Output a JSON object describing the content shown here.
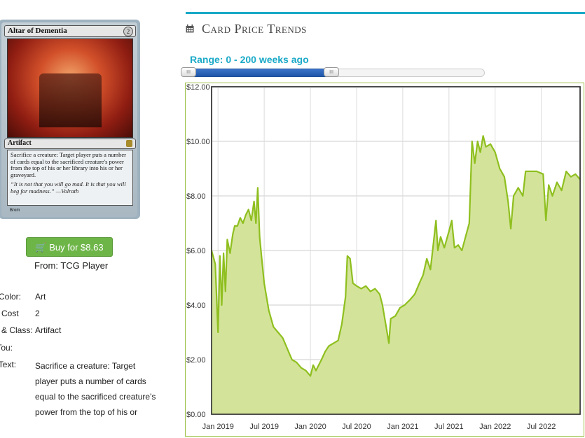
{
  "card": {
    "name": "Altar of Dementia",
    "cost": "2",
    "type": "Artifact",
    "rules_text": "Sacrifice a creature: Target player puts a number of cards equal to the sacrificed creature's power from the top of his or her library into his or her graveyard.",
    "flavor_text": "“It is not that you will go mad. It is that you will beg for madness.” —Volrath",
    "artist": "Brom"
  },
  "buy": {
    "label": "Buy for $8.63",
    "icon": "cart-icon",
    "from": "From: TCG Player"
  },
  "details": {
    "color_label": "l Color:",
    "color_value": "Art",
    "cost_label": "a Cost",
    "cost_value": "2",
    "type_label": "e & Class:",
    "type_value": "Artifact",
    "pt_label": "/Tou:",
    "pt_value": "",
    "text_label": "l Text:",
    "text_value": "Sacrifice a creature: Target player puts a number of cards equal to the sacrificed creature's power from the top of his or"
  },
  "panel": {
    "title": "Card Price Trends",
    "title_icon": "calendar-icon",
    "range_label": "Range: 0 - 200 weeks ago",
    "slider": {
      "min": 0,
      "max": 200,
      "low": 0,
      "high": 200,
      "full_scale_fraction": 0.48
    },
    "accent_color": "#1aa9c8"
  },
  "chart_data": {
    "type": "area",
    "ylim": [
      0,
      12
    ],
    "yticks": [
      "$0.00",
      "$2.00",
      "$4.00",
      "$6.00",
      "$8.00",
      "$10.00",
      "$12.00"
    ],
    "xticks": [
      "Jan 2019",
      "Jul 2019",
      "Jan 2020",
      "Jul 2020",
      "Jan 2021",
      "Jul 2021",
      "Jan 2022",
      "Jul 2022"
    ],
    "xlim": [
      2018.93,
      2022.92
    ],
    "line_color": "#8fbf1f",
    "fill_color": "#d3e49a",
    "grid": true,
    "points": [
      [
        2018.93,
        6.0
      ],
      [
        2018.97,
        5.5
      ],
      [
        2019.0,
        3.0
      ],
      [
        2019.02,
        5.8
      ],
      [
        2019.04,
        4.0
      ],
      [
        2019.06,
        5.9
      ],
      [
        2019.08,
        4.5
      ],
      [
        2019.1,
        6.4
      ],
      [
        2019.13,
        5.9
      ],
      [
        2019.16,
        6.6
      ],
      [
        2019.18,
        6.9
      ],
      [
        2019.21,
        6.9
      ],
      [
        2019.24,
        7.2
      ],
      [
        2019.27,
        7.0
      ],
      [
        2019.3,
        7.3
      ],
      [
        2019.33,
        7.5
      ],
      [
        2019.36,
        7.1
      ],
      [
        2019.39,
        7.8
      ],
      [
        2019.41,
        7.0
      ],
      [
        2019.43,
        8.3
      ],
      [
        2019.45,
        6.5
      ],
      [
        2019.47,
        5.8
      ],
      [
        2019.5,
        4.8
      ],
      [
        2019.55,
        3.8
      ],
      [
        2019.6,
        3.2
      ],
      [
        2019.65,
        3.0
      ],
      [
        2019.7,
        2.8
      ],
      [
        2019.75,
        2.4
      ],
      [
        2019.8,
        2.0
      ],
      [
        2019.85,
        1.9
      ],
      [
        2019.9,
        1.7
      ],
      [
        2019.95,
        1.6
      ],
      [
        2020.0,
        1.4
      ],
      [
        2020.03,
        1.8
      ],
      [
        2020.06,
        1.6
      ],
      [
        2020.09,
        1.8
      ],
      [
        2020.12,
        2.0
      ],
      [
        2020.16,
        2.3
      ],
      [
        2020.2,
        2.5
      ],
      [
        2020.25,
        2.6
      ],
      [
        2020.3,
        2.7
      ],
      [
        2020.34,
        3.3
      ],
      [
        2020.38,
        4.3
      ],
      [
        2020.4,
        5.8
      ],
      [
        2020.43,
        5.7
      ],
      [
        2020.46,
        4.8
      ],
      [
        2020.5,
        4.7
      ],
      [
        2020.55,
        4.6
      ],
      [
        2020.6,
        4.7
      ],
      [
        2020.65,
        4.5
      ],
      [
        2020.7,
        4.6
      ],
      [
        2020.75,
        4.4
      ],
      [
        2020.78,
        4.0
      ],
      [
        2020.82,
        3.2
      ],
      [
        2020.85,
        2.6
      ],
      [
        2020.87,
        3.5
      ],
      [
        2020.92,
        3.6
      ],
      [
        2020.97,
        3.9
      ],
      [
        2021.02,
        4.0
      ],
      [
        2021.08,
        4.2
      ],
      [
        2021.13,
        4.4
      ],
      [
        2021.18,
        4.8
      ],
      [
        2021.22,
        5.1
      ],
      [
        2021.26,
        5.7
      ],
      [
        2021.3,
        5.3
      ],
      [
        2021.33,
        6.2
      ],
      [
        2021.36,
        7.1
      ],
      [
        2021.38,
        6.0
      ],
      [
        2021.41,
        6.5
      ],
      [
        2021.45,
        6.1
      ],
      [
        2021.5,
        6.7
      ],
      [
        2021.53,
        7.1
      ],
      [
        2021.56,
        6.1
      ],
      [
        2021.6,
        6.2
      ],
      [
        2021.64,
        6.0
      ],
      [
        2021.68,
        6.5
      ],
      [
        2021.72,
        7.0
      ],
      [
        2021.75,
        10.0
      ],
      [
        2021.78,
        9.2
      ],
      [
        2021.81,
        10.0
      ],
      [
        2021.84,
        9.6
      ],
      [
        2021.87,
        10.2
      ],
      [
        2021.9,
        9.8
      ],
      [
        2021.95,
        9.9
      ],
      [
        2022.0,
        9.6
      ],
      [
        2022.05,
        9.0
      ],
      [
        2022.1,
        8.7
      ],
      [
        2022.14,
        7.8
      ],
      [
        2022.17,
        6.8
      ],
      [
        2022.2,
        8.0
      ],
      [
        2022.25,
        8.3
      ],
      [
        2022.3,
        8.0
      ],
      [
        2022.33,
        8.9
      ],
      [
        2022.38,
        8.9
      ],
      [
        2022.45,
        8.9
      ],
      [
        2022.52,
        8.8
      ],
      [
        2022.55,
        7.1
      ],
      [
        2022.58,
        8.4
      ],
      [
        2022.62,
        8.0
      ],
      [
        2022.67,
        8.5
      ],
      [
        2022.72,
        8.2
      ],
      [
        2022.77,
        8.9
      ],
      [
        2022.82,
        8.7
      ],
      [
        2022.87,
        8.8
      ],
      [
        2022.92,
        8.6
      ]
    ]
  }
}
